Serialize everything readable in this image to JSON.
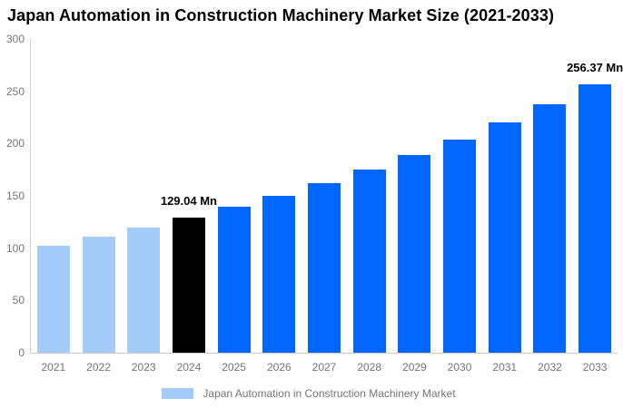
{
  "title": "Japan Automation in Construction Machinery Market Size (2021-2033)",
  "chart_data": {
    "type": "bar",
    "title": "Japan Automation in Construction Machinery Market Size (2021-2033)",
    "categories": [
      "2021",
      "2022",
      "2023",
      "2024",
      "2025",
      "2026",
      "2027",
      "2028",
      "2029",
      "2030",
      "2031",
      "2032",
      "2033"
    ],
    "values": [
      102.6,
      110.8,
      119.6,
      129.04,
      139.3,
      150.3,
      162.2,
      175.1,
      189.0,
      204.0,
      220.2,
      237.6,
      256.37
    ],
    "unit": "Mn",
    "bar_styles": [
      "historical",
      "historical",
      "historical",
      "base_year",
      "forecast",
      "forecast",
      "forecast",
      "forecast",
      "forecast",
      "forecast",
      "forecast",
      "forecast",
      "forecast"
    ],
    "annotations": [
      {
        "category": "2024",
        "text": "129.04 Mn"
      },
      {
        "category": "2033",
        "text": "256.37 Mn"
      }
    ],
    "xlabel": "",
    "ylabel": "",
    "ylim": [
      0,
      300
    ],
    "yticks": [
      0,
      50,
      100,
      150,
      200,
      250,
      300
    ],
    "grid": false,
    "legend": {
      "position": "bottom",
      "label": "Japan Automation in Construction Machinery Market"
    },
    "colors": {
      "historical": "#A3CCFA",
      "base_year": "#000000",
      "forecast": "#0166FC",
      "axis_line": "#CCCCCC",
      "axis_text": "#757575",
      "annotation_text": "#000000"
    }
  }
}
